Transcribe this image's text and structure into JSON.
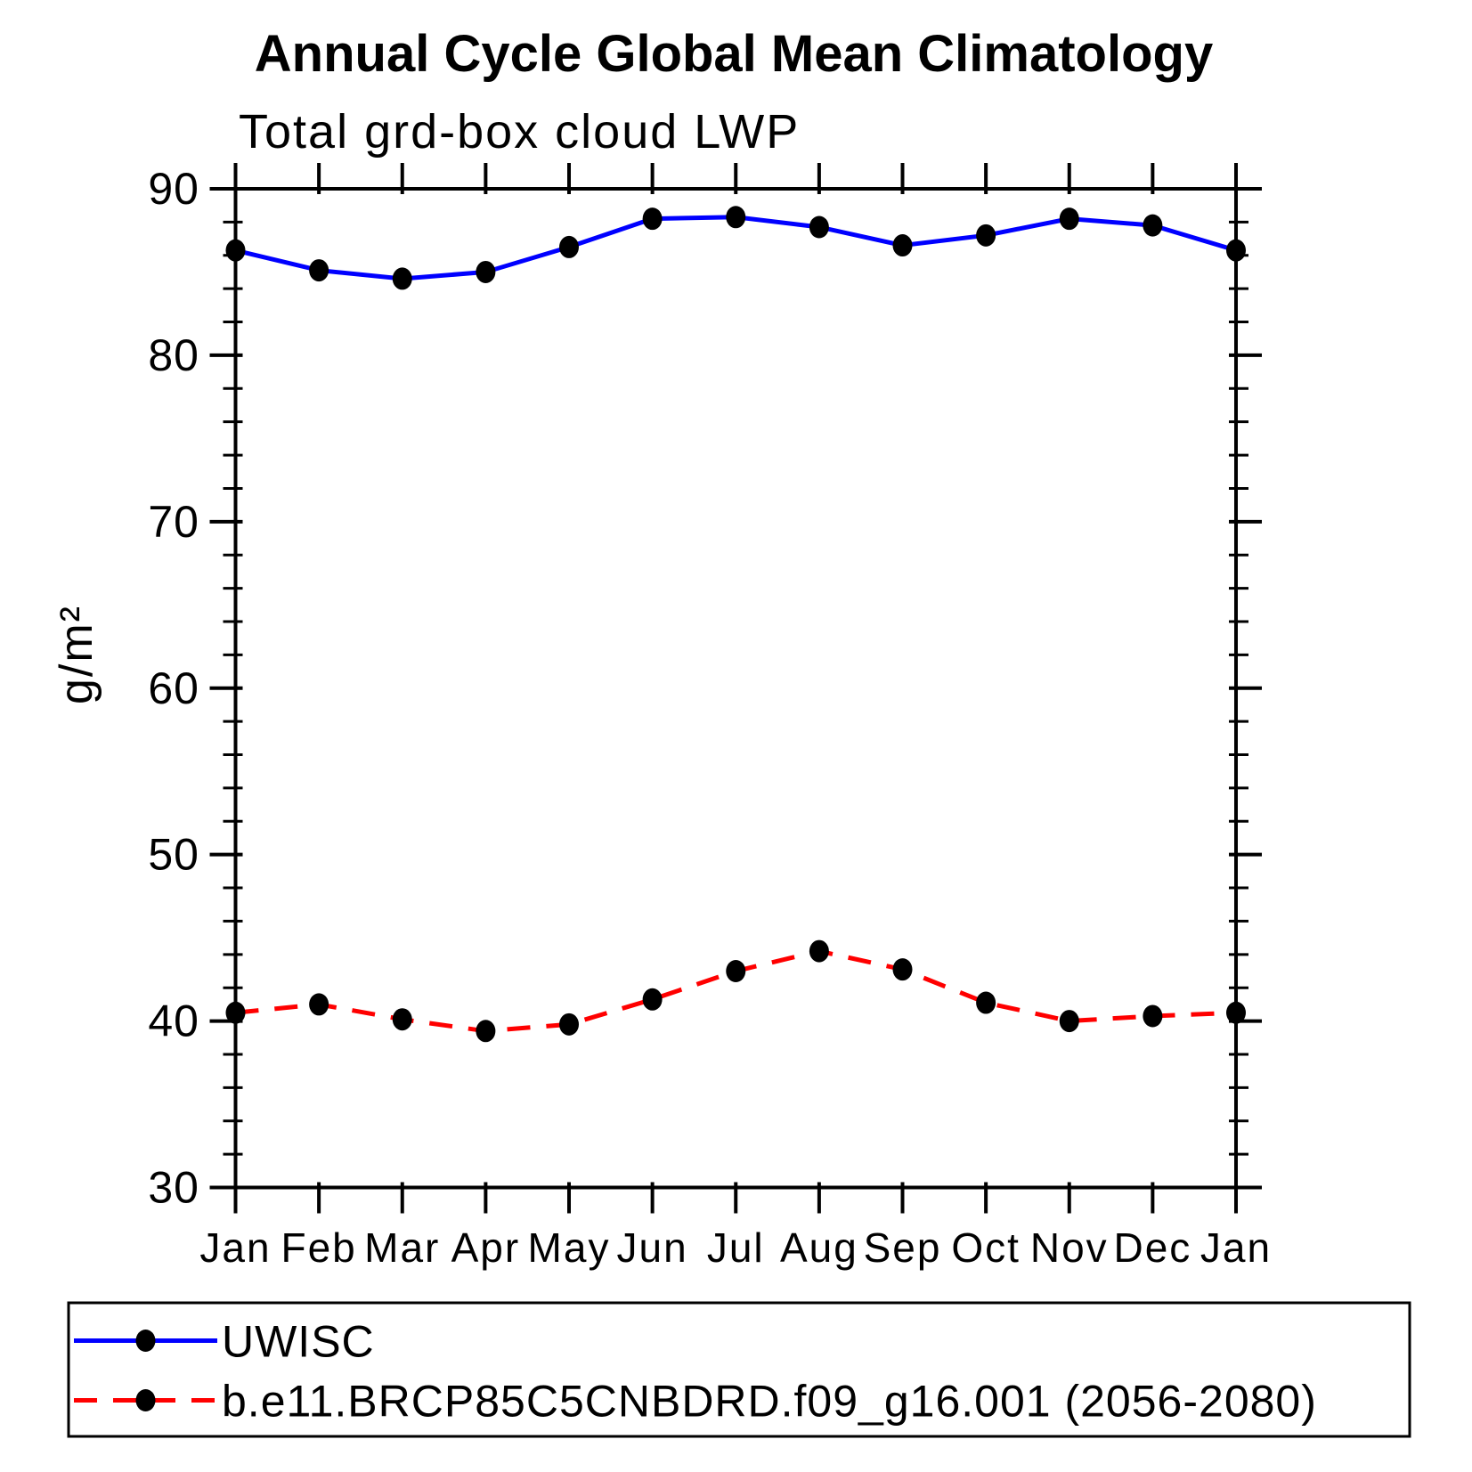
{
  "page": {
    "background": "#ffffff",
    "axis_color": "#000000",
    "marker_color": "#000000"
  },
  "chart_data": {
    "type": "line",
    "title": "Annual Cycle Global Mean Climatology",
    "subtitle": "Total grd-box cloud LWP",
    "ylabel": "g/m²",
    "xlabel": "",
    "categories": [
      "Jan",
      "Feb",
      "Mar",
      "Apr",
      "May",
      "Jun",
      "Jul",
      "Aug",
      "Sep",
      "Oct",
      "Nov",
      "Dec",
      "Jan"
    ],
    "ylim": [
      30,
      90
    ],
    "ytick_major": [
      90,
      80,
      70,
      60,
      50,
      40,
      30
    ],
    "ytick_minor_step": 2,
    "grid": false,
    "legend_position": "bottom",
    "series": [
      {
        "name": "UWISC",
        "color": "#0000ff",
        "line_style": "solid",
        "marker": "filled-circle",
        "marker_color": "#000000",
        "values": [
          86.3,
          85.1,
          84.6,
          85.0,
          86.5,
          88.2,
          88.3,
          87.7,
          86.6,
          87.2,
          88.2,
          87.8,
          86.3
        ]
      },
      {
        "name": "b.e11.BRCP85C5CNBDRD.f09_g16.001 (2056-2080)",
        "color": "#ff0000",
        "line_style": "dashed",
        "marker": "filled-circle",
        "marker_color": "#000000",
        "values": [
          40.5,
          41.0,
          40.1,
          39.4,
          39.8,
          41.3,
          43.0,
          44.2,
          43.1,
          41.1,
          40.0,
          40.3,
          40.5
        ]
      }
    ]
  }
}
